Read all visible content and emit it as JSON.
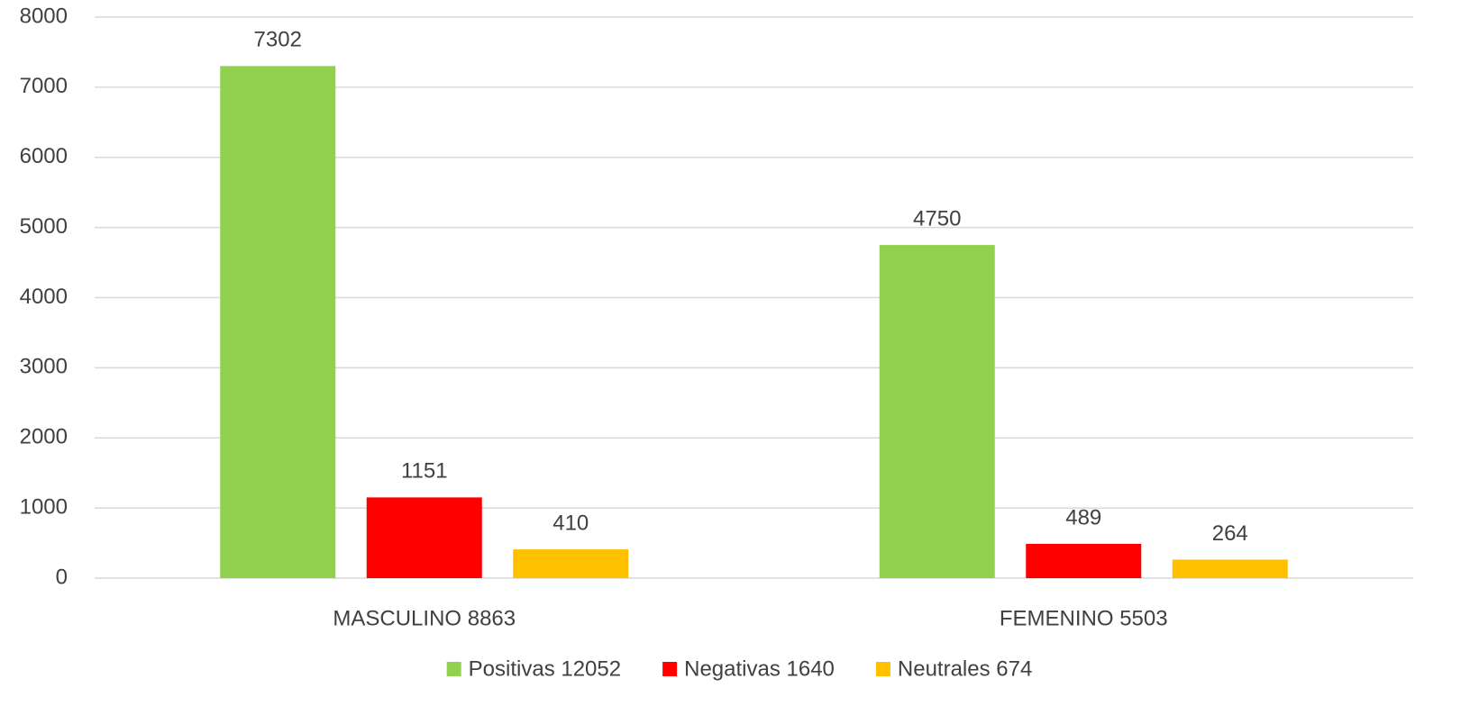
{
  "chart_data": {
    "type": "bar",
    "categories": [
      "MASCULINO 8863",
      "FEMENINO 5503"
    ],
    "series": [
      {
        "name": "Positivas 12052",
        "color": "#92d050",
        "values": [
          7302,
          4750
        ]
      },
      {
        "name": "Negativas 1640",
        "color": "#ff0000",
        "values": [
          1151,
          489
        ]
      },
      {
        "name": "Neutrales 674",
        "color": "#ffc000",
        "values": [
          410,
          264
        ]
      }
    ],
    "ylim": [
      0,
      8000
    ],
    "yticks": [
      0,
      1000,
      2000,
      3000,
      4000,
      5000,
      6000,
      7000,
      8000
    ],
    "grid": true,
    "legend": "bottom"
  }
}
